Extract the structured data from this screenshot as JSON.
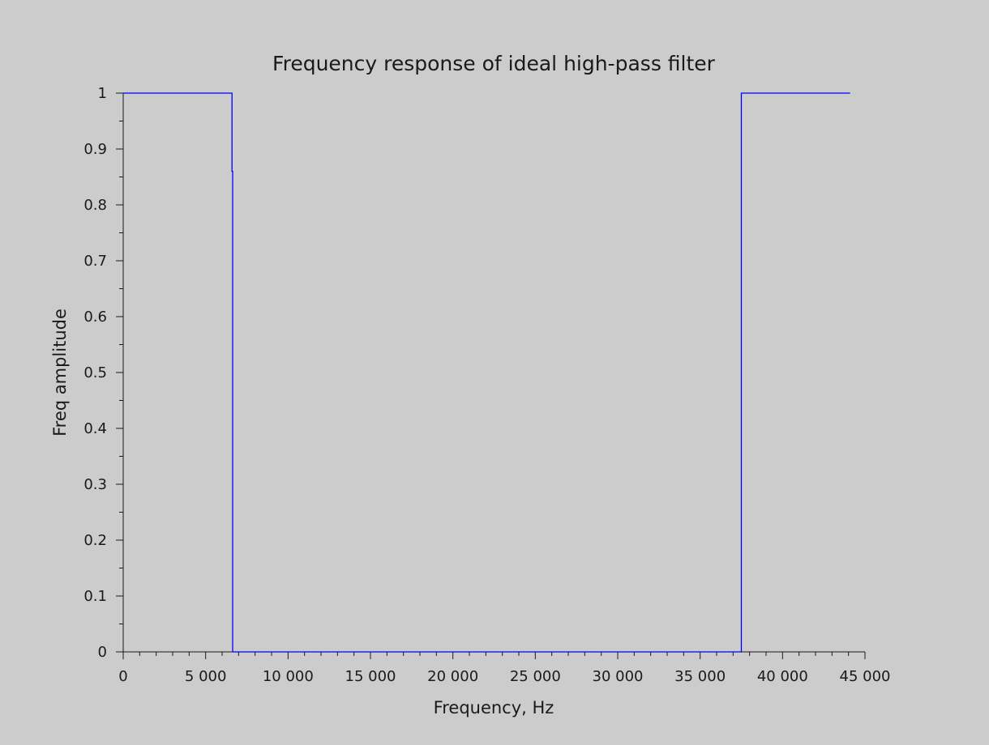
{
  "chart_data": {
    "type": "line",
    "title": "Frequency response of ideal high-pass filter",
    "xlabel": "Frequency, Hz",
    "ylabel": "Freq amplitude",
    "xlim": [
      0,
      45000
    ],
    "ylim": [
      0,
      1
    ],
    "x_ticks": [
      0,
      5000,
      10000,
      15000,
      20000,
      25000,
      30000,
      35000,
      40000,
      45000
    ],
    "x_tick_labels": [
      "0",
      "5 000",
      "10 000",
      "15 000",
      "20 000",
      "25 000",
      "30 000",
      "35 000",
      "40 000",
      "45 000"
    ],
    "x_minor_ticks_per_major": 5,
    "y_ticks": [
      0,
      0.1,
      0.2,
      0.3,
      0.4,
      0.5,
      0.6,
      0.7,
      0.8,
      0.9,
      1
    ],
    "y_tick_labels": [
      "0",
      "0.1",
      "0.2",
      "0.3",
      "0.4",
      "0.5",
      "0.6",
      "0.7",
      "0.8",
      "0.9",
      "1"
    ],
    "y_minor_ticks_per_major": 2,
    "grid": false,
    "legend": "none",
    "series": [
      {
        "color": "#0000ff",
        "x": [
          0,
          6600,
          6600,
          6640,
          6640,
          37500,
          37500,
          44100
        ],
        "y": [
          1,
          1,
          0.86,
          0.86,
          0,
          0,
          1,
          1
        ]
      }
    ]
  }
}
